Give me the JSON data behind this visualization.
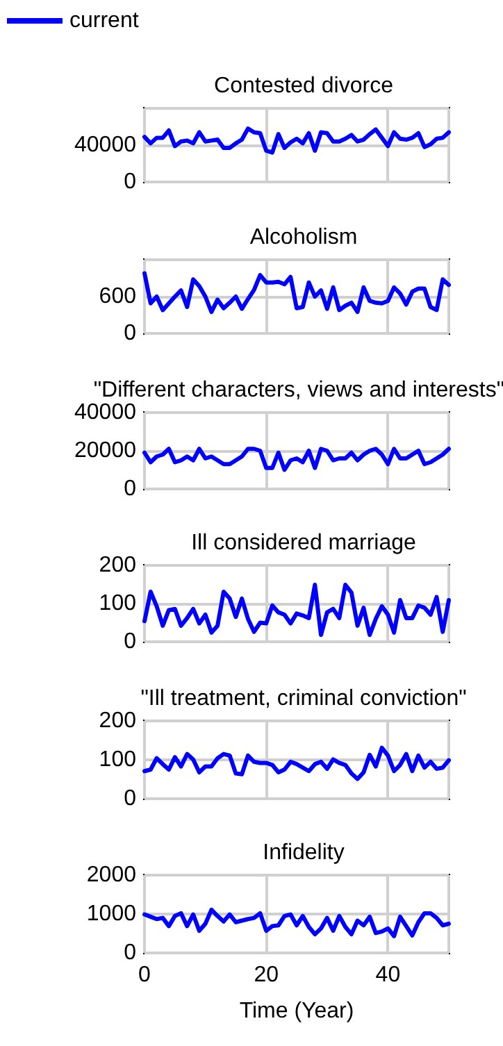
{
  "chart_data": [
    {
      "type": "line",
      "title": "Contested divorce",
      "legend": "top left",
      "grid": true,
      "marker": "none",
      "line_style": "solid",
      "tick_labels": "y",
      "xlim": [
        0,
        50
      ],
      "xticks": [
        0,
        20,
        40
      ],
      "ylim": [
        0,
        80000
      ],
      "yticks": [
        0,
        40000
      ],
      "x": [
        0,
        1,
        2,
        3,
        4,
        5,
        6,
        7,
        8,
        9,
        10,
        11,
        12,
        13,
        14,
        15,
        16,
        17,
        18,
        19,
        20,
        21,
        22,
        23,
        24,
        25,
        26,
        27,
        28,
        29,
        30,
        31,
        32,
        33,
        34,
        35,
        36,
        37,
        38,
        39,
        40,
        41,
        42,
        43,
        44,
        45,
        46,
        47,
        48,
        49,
        50
      ],
      "series": [
        {
          "name": "current",
          "color": "#0000ff",
          "values": [
            49000,
            42000,
            48000,
            48000,
            56000,
            39000,
            44000,
            45000,
            42000,
            54000,
            44000,
            45000,
            46000,
            37000,
            37000,
            42000,
            46000,
            58000,
            54000,
            53000,
            34000,
            32000,
            52000,
            37000,
            43000,
            47000,
            42000,
            53000,
            34000,
            54000,
            53000,
            44000,
            44000,
            47000,
            51000,
            44000,
            46000,
            52000,
            57000,
            48000,
            39000,
            54000,
            47000,
            46000,
            48000,
            53000,
            38000,
            41000,
            47000,
            48000,
            54000
          ]
        }
      ]
    },
    {
      "type": "line",
      "title": "Alcoholism",
      "grid": true,
      "marker": "none",
      "line_style": "solid",
      "tick_labels": "y",
      "xlim": [
        0,
        50
      ],
      "xticks": [
        0,
        20,
        40
      ],
      "ylim": [
        0,
        1200
      ],
      "yticks": [
        0,
        600
      ],
      "x": [
        0,
        1,
        2,
        3,
        4,
        5,
        6,
        7,
        8,
        9,
        10,
        11,
        12,
        13,
        14,
        15,
        16,
        17,
        18,
        19,
        20,
        21,
        22,
        23,
        24,
        25,
        26,
        27,
        28,
        29,
        30,
        31,
        32,
        33,
        34,
        35,
        36,
        37,
        38,
        39,
        40,
        41,
        42,
        43,
        44,
        45,
        46,
        47,
        48,
        49,
        50
      ],
      "series": [
        {
          "color": "#0000ff",
          "values": [
            980,
            490,
            600,
            380,
            490,
            600,
            700,
            430,
            880,
            770,
            600,
            350,
            550,
            410,
            500,
            600,
            400,
            560,
            710,
            950,
            830,
            830,
            840,
            800,
            920,
            410,
            430,
            830,
            600,
            700,
            400,
            750,
            380,
            450,
            500,
            350,
            750,
            530,
            500,
            490,
            530,
            750,
            650,
            470,
            680,
            730,
            730,
            430,
            380,
            880,
            790
          ]
        }
      ]
    },
    {
      "type": "line",
      "title": "\"Different characters, views and interests\"",
      "grid": true,
      "marker": "none",
      "line_style": "solid",
      "tick_labels": "y",
      "xlim": [
        0,
        50
      ],
      "xticks": [
        0,
        20,
        40
      ],
      "ylim": [
        0,
        40000
      ],
      "yticks": [
        0,
        20000,
        40000
      ],
      "x": [
        0,
        1,
        2,
        3,
        4,
        5,
        6,
        7,
        8,
        9,
        10,
        11,
        12,
        13,
        14,
        15,
        16,
        17,
        18,
        19,
        20,
        21,
        22,
        23,
        24,
        25,
        26,
        27,
        28,
        29,
        30,
        31,
        32,
        33,
        34,
        35,
        36,
        37,
        38,
        39,
        40,
        41,
        42,
        43,
        44,
        45,
        46,
        47,
        48,
        49,
        50
      ],
      "series": [
        {
          "color": "#0000ff",
          "values": [
            19000,
            14000,
            17000,
            18000,
            21000,
            14000,
            15000,
            17000,
            15000,
            21000,
            16000,
            17000,
            15000,
            13000,
            13000,
            15000,
            17000,
            21000,
            21000,
            20000,
            11000,
            11000,
            19000,
            10000,
            15000,
            16000,
            14000,
            20000,
            11000,
            21000,
            20000,
            15000,
            16000,
            16000,
            19000,
            15000,
            18000,
            20000,
            21000,
            18000,
            13000,
            21000,
            16000,
            16000,
            18000,
            20000,
            13000,
            14000,
            16000,
            18000,
            21000
          ]
        }
      ]
    },
    {
      "type": "line",
      "title": "Ill considered marriage",
      "grid": true,
      "marker": "none",
      "line_style": "solid",
      "tick_labels": "y",
      "xlim": [
        0,
        50
      ],
      "xticks": [
        0,
        20,
        40
      ],
      "ylim": [
        0,
        200
      ],
      "yticks": [
        0,
        100,
        200
      ],
      "x": [
        0,
        1,
        2,
        3,
        4,
        5,
        6,
        7,
        8,
        9,
        10,
        11,
        12,
        13,
        14,
        15,
        16,
        17,
        18,
        19,
        20,
        21,
        22,
        23,
        24,
        25,
        26,
        27,
        28,
        29,
        30,
        31,
        32,
        33,
        34,
        35,
        36,
        37,
        38,
        39,
        40,
        41,
        42,
        43,
        44,
        45,
        46,
        47,
        48,
        49,
        50
      ],
      "series": [
        {
          "color": "#0000ff",
          "values": [
            54,
            131,
            93,
            42,
            83,
            86,
            42,
            62,
            86,
            48,
            71,
            24,
            42,
            131,
            113,
            65,
            113,
            60,
            26,
            50,
            48,
            95,
            77,
            71,
            48,
            74,
            69,
            62,
            149,
            18,
            77,
            86,
            62,
            149,
            129,
            42,
            89,
            18,
            60,
            93,
            71,
            24,
            109,
            62,
            62,
            95,
            89,
            71,
            117,
            26,
            109
          ]
        }
      ]
    },
    {
      "type": "line",
      "title": "\"Ill treatment, criminal conviction\"",
      "grid": true,
      "marker": "none",
      "line_style": "solid",
      "tick_labels": "y",
      "xlim": [
        0,
        50
      ],
      "xticks": [
        0,
        20,
        40
      ],
      "ylim": [
        0,
        200
      ],
      "yticks": [
        0,
        100,
        200
      ],
      "x": [
        0,
        1,
        2,
        3,
        4,
        5,
        6,
        7,
        8,
        9,
        10,
        11,
        12,
        13,
        14,
        15,
        16,
        17,
        18,
        19,
        20,
        21,
        22,
        23,
        24,
        25,
        26,
        27,
        28,
        29,
        30,
        31,
        32,
        33,
        34,
        35,
        36,
        37,
        38,
        39,
        40,
        41,
        42,
        43,
        44,
        45,
        46,
        47,
        48,
        49,
        50
      ],
      "series": [
        {
          "color": "#0000ff",
          "values": [
            71,
            75,
            104,
            89,
            75,
            107,
            83,
            115,
            101,
            68,
            83,
            83,
            104,
            115,
            111,
            65,
            63,
            111,
            95,
            92,
            92,
            87,
            68,
            75,
            95,
            89,
            80,
            71,
            89,
            95,
            77,
            101,
            92,
            87,
            65,
            51,
            68,
            113,
            83,
            131,
            111,
            71,
            87,
            115,
            71,
            111,
            80,
            95,
            77,
            80,
            99
          ]
        }
      ]
    },
    {
      "type": "line",
      "title": "Infidelity",
      "xlabel": "Time (Year)",
      "grid": true,
      "marker": "none",
      "line_style": "solid",
      "xlim": [
        0,
        50
      ],
      "xticks": [
        0,
        20,
        40
      ],
      "ylim": [
        0,
        2000
      ],
      "yticks": [
        0,
        1000,
        2000
      ],
      "x": [
        0,
        1,
        2,
        3,
        4,
        5,
        6,
        7,
        8,
        9,
        10,
        11,
        12,
        13,
        14,
        15,
        16,
        17,
        18,
        19,
        20,
        21,
        22,
        23,
        24,
        25,
        26,
        27,
        28,
        29,
        30,
        31,
        32,
        33,
        34,
        35,
        36,
        37,
        38,
        39,
        40,
        41,
        42,
        43,
        44,
        45,
        46,
        47,
        48,
        49,
        50
      ],
      "series": [
        {
          "color": "#0000ff",
          "values": [
            990,
            930,
            870,
            900,
            690,
            950,
            1020,
            690,
            990,
            570,
            750,
            1110,
            950,
            810,
            990,
            790,
            830,
            870,
            900,
            1020,
            570,
            690,
            710,
            950,
            990,
            710,
            950,
            670,
            480,
            630,
            900,
            570,
            950,
            670,
            480,
            830,
            710,
            930,
            510,
            550,
            630,
            430,
            930,
            690,
            450,
            790,
            1020,
            1020,
            900,
            710,
            750
          ]
        }
      ]
    }
  ]
}
